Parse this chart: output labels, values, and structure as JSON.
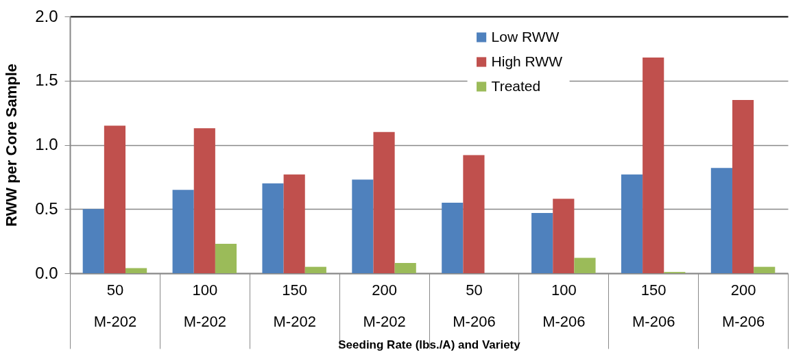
{
  "chart_data": {
    "type": "bar",
    "xlabel": "Seeding Rate (lbs./A) and Variety",
    "ylabel": "RWW per Core Sample",
    "categories": [
      "50\nM-202",
      "100\nM-202",
      "150\nM-202",
      "200\nM-202",
      "50\nM-206",
      "100\nM-206",
      "150\nM-206",
      "200\nM-206"
    ],
    "series": [
      {
        "name": "Low RWW",
        "color": "#4f81bd",
        "values": [
          0.5,
          0.65,
          0.7,
          0.73,
          0.55,
          0.47,
          0.77,
          0.82
        ]
      },
      {
        "name": "High RWW",
        "color": "#c0504d",
        "values": [
          1.15,
          1.13,
          0.77,
          1.1,
          0.92,
          0.58,
          1.68,
          1.35
        ]
      },
      {
        "name": "Treated",
        "color": "#9bbb59",
        "values": [
          0.04,
          0.23,
          0.05,
          0.08,
          0,
          0.12,
          0.01,
          0.05
        ]
      }
    ],
    "ylim": [
      0,
      2.0
    ],
    "yticks": [
      {
        "value": 0,
        "label": "0.0"
      },
      {
        "value": 0.5,
        "label": "0.5"
      },
      {
        "value": 1.0,
        "label": "1.0"
      },
      {
        "value": 1.5,
        "label": "1.5"
      },
      {
        "value": 2.0,
        "label": "2.0"
      }
    ],
    "grid": "y",
    "legend": "top right"
  }
}
